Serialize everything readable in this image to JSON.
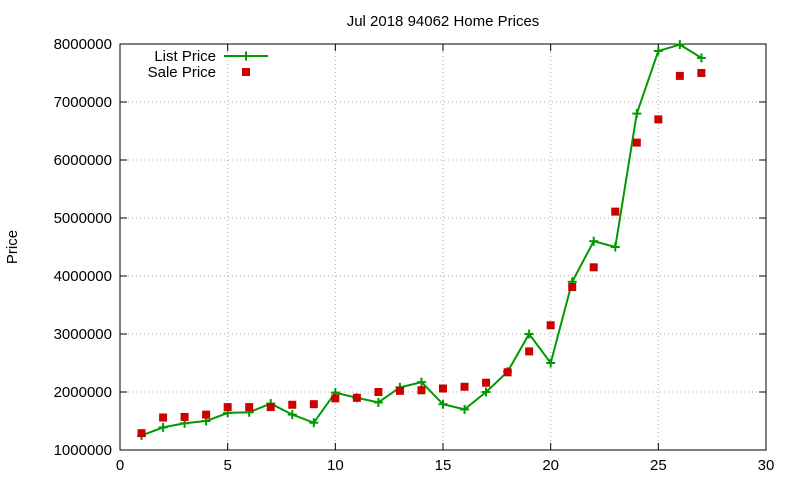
{
  "chart_data": {
    "type": "line",
    "title": "Jul 2018 94062 Home Prices",
    "xlabel": "",
    "ylabel": "Price",
    "xlim": [
      0,
      30
    ],
    "ylim": [
      1000000,
      8000000
    ],
    "x_ticks": [
      "0",
      "5",
      "10",
      "15",
      "20",
      "25",
      "30"
    ],
    "y_ticks": [
      "1000000",
      "2000000",
      "3000000",
      "4000000",
      "5000000",
      "6000000",
      "7000000",
      "8000000"
    ],
    "grid": true,
    "legend_position": "top-left",
    "x": [
      1,
      2,
      3,
      4,
      5,
      6,
      7,
      8,
      9,
      10,
      11,
      12,
      13,
      14,
      15,
      16,
      17,
      18,
      19,
      20,
      21,
      22,
      23,
      24,
      25,
      26,
      27
    ],
    "series": [
      {
        "name": "List Price",
        "style": "line-plus",
        "color": "#009900",
        "values": [
          1250000,
          1390000,
          1460000,
          1500000,
          1640000,
          1650000,
          1800000,
          1610000,
          1470000,
          1990000,
          1900000,
          1820000,
          2080000,
          2170000,
          1790000,
          1700000,
          2000000,
          2350000,
          3000000,
          2500000,
          3900000,
          4600000,
          4500000,
          6800000,
          7880000,
          7990000,
          7760000
        ]
      },
      {
        "name": "Sale Price",
        "style": "square",
        "color": "#cc0000",
        "values": [
          1290000,
          1560000,
          1570000,
          1610000,
          1740000,
          1740000,
          1740000,
          1780000,
          1790000,
          1890000,
          1900000,
          2000000,
          2020000,
          2030000,
          2060000,
          2090000,
          2160000,
          2340000,
          2700000,
          3150000,
          3810000,
          4150000,
          5110000,
          6300000,
          6700000,
          7450000,
          7500000
        ]
      }
    ]
  }
}
